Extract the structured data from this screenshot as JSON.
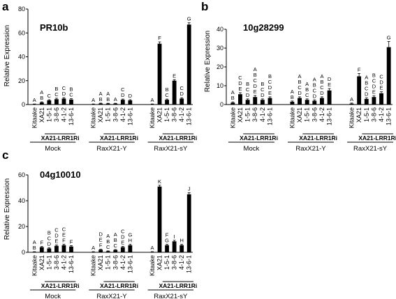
{
  "chart_data": [
    {
      "type": "bar",
      "panel": "a",
      "title": "PR10b",
      "ylabel": "Relative Expression",
      "ylim": [
        0,
        80
      ],
      "yticks": [
        0,
        20,
        40,
        60,
        80
      ],
      "categories": [
        "Kitaake",
        "XA21",
        "1-5-1",
        "3-8-6",
        "4-1-2",
        "13-6-1",
        "Kitaake",
        "XA21",
        "1-5-1",
        "3-8-6",
        "4-1-2",
        "13-6-1",
        "Kitaake",
        "XA21",
        "1-5-1",
        "3-8-6",
        "4-1-2",
        "13-6-1"
      ],
      "values": [
        0.3,
        1.8,
        3.5,
        4.5,
        5.0,
        4.2,
        0.3,
        0.9,
        0.8,
        0.8,
        4.0,
        3.5,
        0.3,
        51,
        4.0,
        20,
        5.0,
        67
      ],
      "errors": [
        0.2,
        0.5,
        0.6,
        0.8,
        0.8,
        0.7,
        0.2,
        0.3,
        0.3,
        0.3,
        0.6,
        0.6,
        0.2,
        1.5,
        0.6,
        0.8,
        0.7,
        1.5
      ],
      "letters": [
        "A",
        "A\nB",
        "C",
        "B\nC",
        "C\nD",
        "B\nC",
        "A",
        "A\nB",
        "A\nB",
        "A",
        "C\nD",
        "D",
        "A",
        "F",
        "B\nC",
        "E",
        "C\nD",
        "G"
      ],
      "groups": [
        "Mock",
        "RaxX21-Y",
        "RaxX21-sY"
      ],
      "subgroup": "XA21-LRR1Ri"
    },
    {
      "type": "bar",
      "panel": "b",
      "title": "10g28299",
      "ylabel": "Relative Expression",
      "ylim": [
        0,
        40
      ],
      "yticks": [
        0,
        10,
        20,
        30,
        40
      ],
      "categories": [
        "Kitaake",
        "XA21",
        "1-5-1",
        "3-8-6",
        "4-1-2",
        "13-6-1",
        "Kitaake",
        "XA21",
        "1-5-1",
        "3-8-6",
        "4-1-2",
        "13-6-1",
        "Kitaake",
        "XA21",
        "1-5-1",
        "3-8-6",
        "4-1-2",
        "13-6-1"
      ],
      "values": [
        1.0,
        5.5,
        2.5,
        4.0,
        2.5,
        3.5,
        1.5,
        3.5,
        2.5,
        2.0,
        3.5,
        7.5,
        0.5,
        15,
        3.0,
        4.0,
        6.0,
        30.5
      ],
      "errors": [
        0.4,
        0.8,
        0.5,
        0.8,
        0.5,
        0.6,
        0.4,
        0.6,
        0.5,
        0.5,
        0.6,
        1.0,
        0.3,
        1.5,
        0.6,
        0.6,
        0.8,
        3.0
      ],
      "letters": [
        "A\nB",
        "C\nD\nE",
        "B\nC\nD",
        "A\nB\nC\nD\nE",
        "B\nC\nD",
        "B\nC\nD\nE",
        "A\nB",
        "A\nB\nC\nD",
        "A\nB\nC",
        "A\nB\nC\nD",
        "A\nB\nC\nD",
        "D\nE",
        "A",
        "F",
        "A\nB\nC\nD",
        "B\nC\nD\nE",
        "C\nD\nE",
        "G"
      ],
      "groups": [
        "Mock",
        "RaxX21-Y",
        "RaxX21-sY"
      ],
      "subgroup": "XA21-LRR1Ri"
    },
    {
      "type": "bar",
      "panel": "c",
      "title": "04g10010",
      "ylabel": "Relative Expression",
      "ylim": [
        0,
        60
      ],
      "yticks": [
        0,
        20,
        40,
        60
      ],
      "categories": [
        "Kitaake",
        "XA21",
        "1-5-1",
        "3-8-6",
        "4-1-2",
        "13-6-1",
        "Kitaake",
        "XA21",
        "1-5-1",
        "3-8-6",
        "4-1-2",
        "13-6-1",
        "Kitaake",
        "XA21",
        "1-5-1",
        "3-8-6",
        "4-1-2",
        "13-6-1"
      ],
      "values": [
        0.3,
        4.0,
        3.0,
        5.0,
        5.5,
        4.5,
        0.3,
        2.0,
        0.8,
        1.8,
        4.0,
        5.5,
        0.3,
        51,
        5.5,
        8.5,
        5.5,
        45
      ],
      "errors": [
        0.2,
        0.5,
        0.5,
        0.7,
        0.8,
        0.7,
        0.2,
        0.4,
        0.3,
        0.4,
        0.6,
        0.8,
        0.2,
        1.0,
        0.7,
        0.8,
        0.7,
        1.2
      ],
      "letters": [
        "A\nB",
        "F",
        "B\nC\nD",
        "C\nD\nE",
        "C\nE\nF",
        "F",
        "A",
        "D\nE\nF",
        "A\nB\nC",
        "A\nB\nC",
        "C\nD\nE",
        "G\nH",
        "A",
        "K",
        "F\nG",
        "I",
        "H",
        "J"
      ],
      "groups": [
        "Mock",
        "RaxX21-Y",
        "RaxX21-sY"
      ],
      "subgroup": "XA21-LRR1Ri"
    }
  ]
}
